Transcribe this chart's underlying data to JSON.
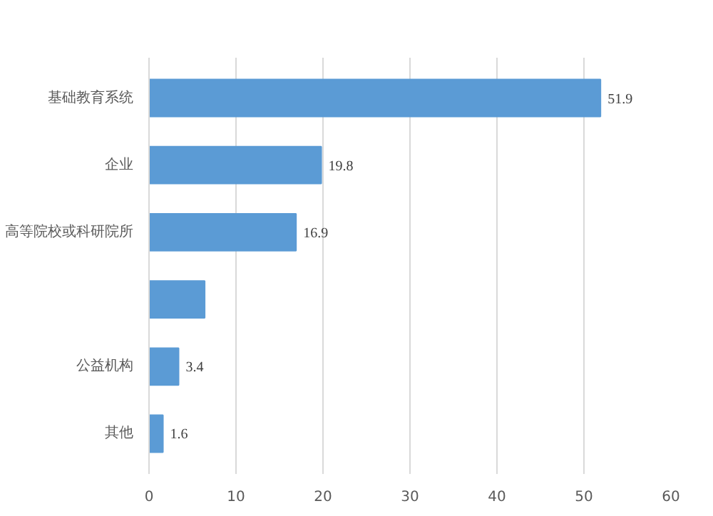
{
  "chart_data": {
    "type": "bar",
    "orientation": "horizontal",
    "categories": [
      "基础教育系统",
      "企业",
      "高等院校或科研院所",
      null,
      "公益机构",
      "其他"
    ],
    "values": [
      51.9,
      19.8,
      16.9,
      6.4,
      3.4,
      1.6
    ],
    "value_labels": [
      "51.9",
      "19.8",
      "16.9",
      null,
      "3.4",
      "1.6"
    ],
    "color": "#5b9bd5",
    "xlim": [
      0,
      60
    ],
    "xticks": [
      0,
      10,
      20,
      30,
      40,
      50,
      60
    ],
    "grid": "x"
  }
}
